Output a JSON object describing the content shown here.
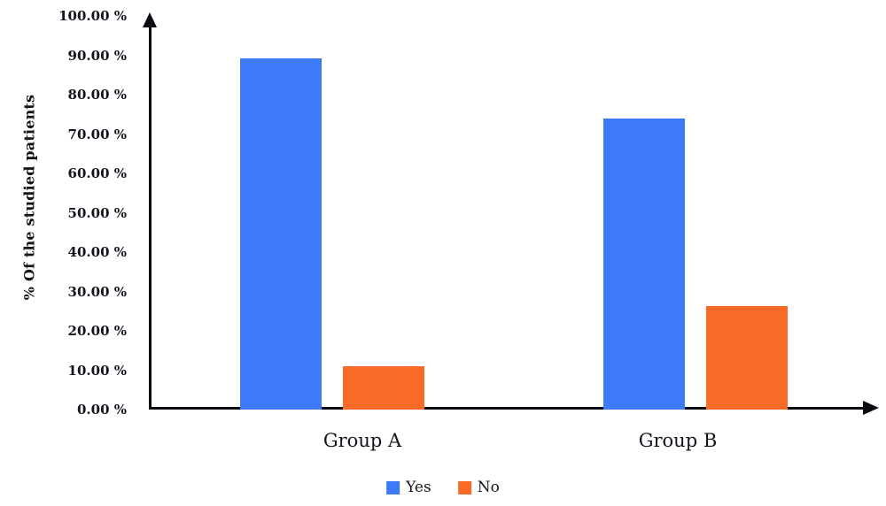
{
  "chart_data": {
    "type": "bar",
    "title": "",
    "xlabel": "",
    "ylabel": "% Of the studied patients",
    "ylim": [
      0,
      100
    ],
    "grid": false,
    "legend_position": "bottom",
    "categories": [
      "Group A",
      "Group B"
    ],
    "series": [
      {
        "name": "Yes",
        "color": "#3D7AF7",
        "values": [
          89.2,
          74.0
        ]
      },
      {
        "name": "No",
        "color": "#F96A27",
        "values": [
          11.0,
          26.2
        ]
      }
    ],
    "y_ticks": [
      {
        "label": "100.00 %",
        "value": 100
      },
      {
        "label": "90.00 %",
        "value": 90
      },
      {
        "label": "80.00 %",
        "value": 80
      },
      {
        "label": "70.00 %",
        "value": 70
      },
      {
        "label": "60.00 %",
        "value": 60
      },
      {
        "label": "50.00 %",
        "value": 50
      },
      {
        "label": "40.00 %",
        "value": 40
      },
      {
        "label": "30.00 %",
        "value": 30
      },
      {
        "label": "20.00 %",
        "value": 20
      },
      {
        "label": "10.00 %",
        "value": 10
      },
      {
        "label": "0.00 %",
        "value": 0
      }
    ]
  }
}
